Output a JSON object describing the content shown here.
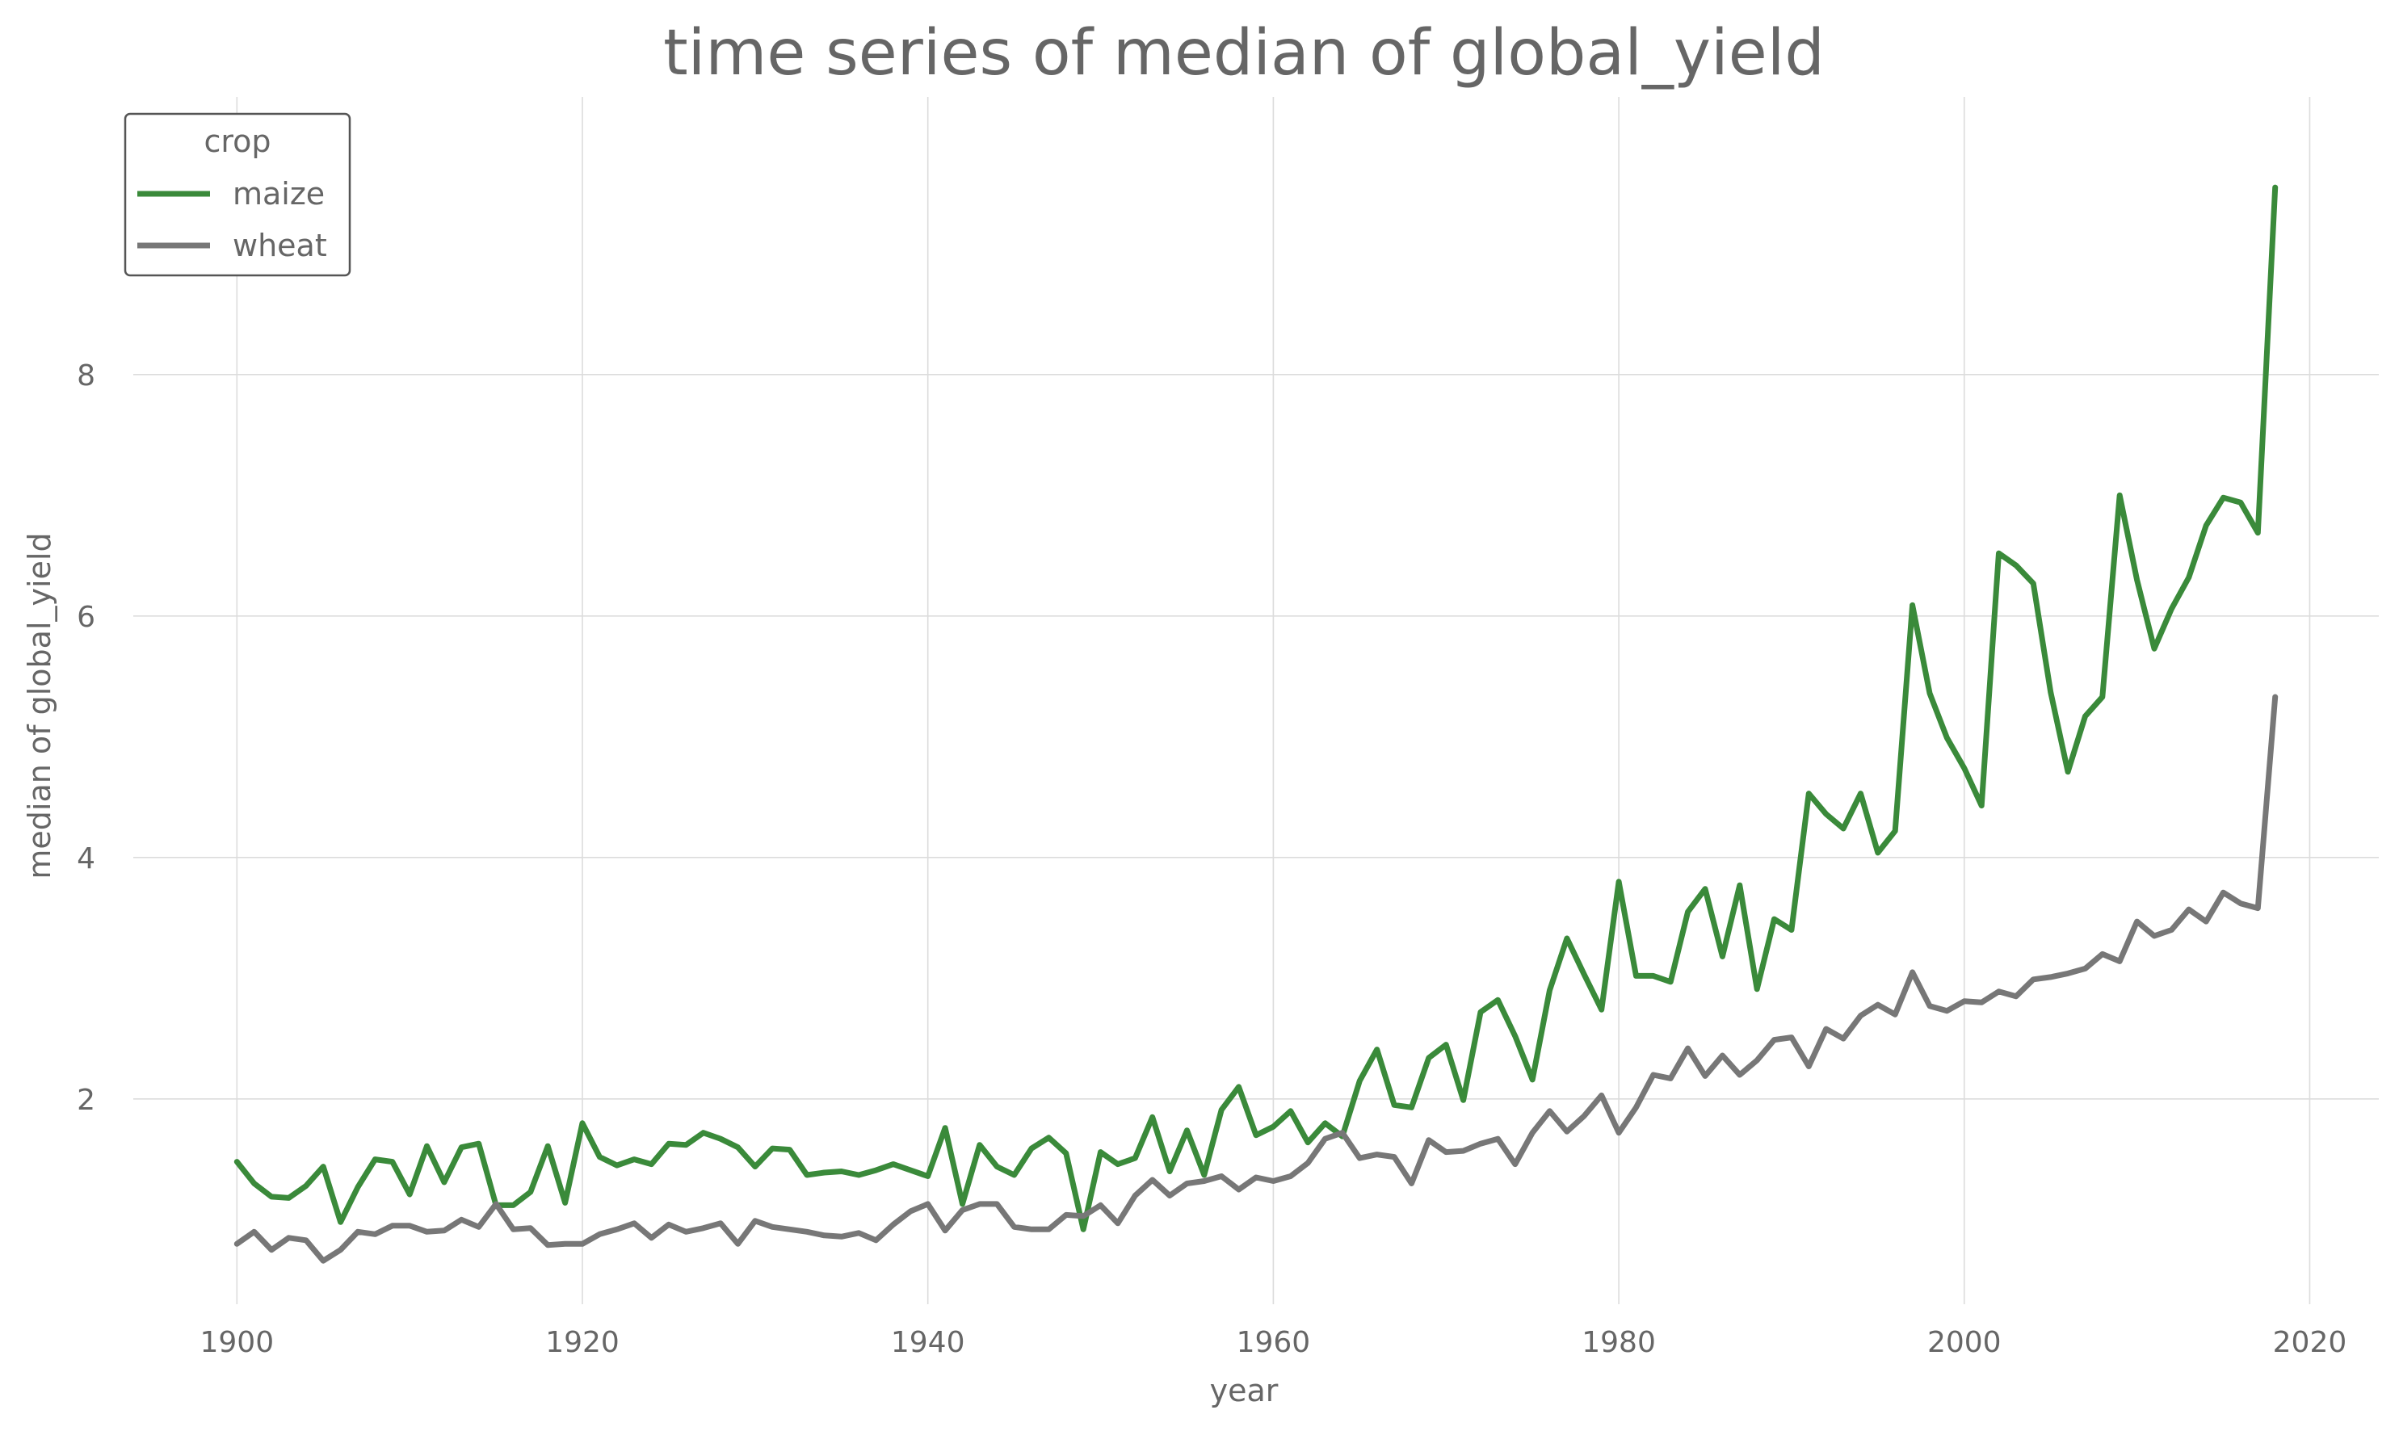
{
  "chart_data": {
    "type": "line",
    "title": "time series of median of global_yield",
    "xlabel": "year",
    "ylabel": "median of global_yield",
    "xlim": [
      1894,
      2024
    ],
    "ylim": [
      0.3,
      10.3
    ],
    "x_ticks": [
      1900,
      1920,
      1940,
      1960,
      1980,
      2000,
      2020
    ],
    "y_ticks": [
      2,
      4,
      6,
      8
    ],
    "grid": true,
    "legend": {
      "title": "crop",
      "placement": "top-left"
    },
    "x": [
      1900,
      1901,
      1902,
      1903,
      1904,
      1905,
      1906,
      1907,
      1908,
      1909,
      1910,
      1911,
      1912,
      1913,
      1914,
      1915,
      1916,
      1917,
      1918,
      1919,
      1920,
      1921,
      1922,
      1923,
      1924,
      1925,
      1926,
      1927,
      1928,
      1929,
      1930,
      1931,
      1932,
      1933,
      1934,
      1935,
      1936,
      1937,
      1938,
      1939,
      1940,
      1941,
      1942,
      1943,
      1944,
      1945,
      1946,
      1947,
      1948,
      1949,
      1950,
      1951,
      1952,
      1953,
      1954,
      1955,
      1956,
      1957,
      1958,
      1959,
      1960,
      1961,
      1962,
      1963,
      1964,
      1965,
      1966,
      1967,
      1968,
      1969,
      1970,
      1971,
      1972,
      1973,
      1974,
      1975,
      1976,
      1977,
      1978,
      1979,
      1980,
      1981,
      1982,
      1983,
      1984,
      1985,
      1986,
      1987,
      1988,
      1989,
      1990,
      1991,
      1992,
      1993,
      1994,
      1995,
      1996,
      1997,
      1998,
      1999,
      2000,
      2001,
      2002,
      2003,
      2004,
      2005,
      2006,
      2007,
      2008,
      2009,
      2010,
      2011,
      2012,
      2013,
      2014,
      2015,
      2016,
      2017,
      2018
    ],
    "series": [
      {
        "name": "maize",
        "color": "#3a8a3a",
        "values": [
          1.48,
          1.3,
          1.19,
          1.18,
          1.28,
          1.44,
          0.98,
          1.27,
          1.5,
          1.48,
          1.21,
          1.61,
          1.31,
          1.6,
          1.63,
          1.12,
          1.12,
          1.23,
          1.61,
          1.14,
          1.8,
          1.52,
          1.45,
          1.5,
          1.46,
          1.63,
          1.62,
          1.72,
          1.67,
          1.6,
          1.44,
          1.59,
          1.58,
          1.37,
          1.39,
          1.4,
          1.37,
          1.41,
          1.46,
          1.41,
          1.36,
          1.76,
          1.13,
          1.62,
          1.44,
          1.37,
          1.59,
          1.68,
          1.55,
          0.92,
          1.56,
          1.46,
          1.51,
          1.85,
          1.4,
          1.74,
          1.37,
          1.91,
          2.1,
          1.7,
          1.77,
          1.9,
          1.64,
          1.8,
          1.69,
          2.15,
          2.41,
          1.95,
          1.93,
          2.34,
          2.45,
          1.99,
          2.72,
          2.82,
          2.52,
          2.16,
          2.9,
          3.33,
          3.03,
          2.74,
          3.8,
          3.02,
          3.02,
          2.97,
          3.55,
          3.74,
          3.18,
          3.77,
          2.91,
          3.49,
          3.4,
          4.53,
          4.36,
          4.24,
          4.53,
          4.04,
          4.22,
          6.09,
          5.36,
          4.99,
          4.74,
          4.43,
          6.52,
          6.42,
          6.27,
          5.37,
          4.71,
          5.17,
          5.33,
          7.0,
          6.3,
          5.73,
          6.06,
          6.32,
          6.75,
          6.98,
          6.94,
          6.69,
          9.55
        ]
      },
      {
        "name": "wheat",
        "color": "#777777",
        "values": [
          0.8,
          0.9,
          0.75,
          0.85,
          0.83,
          0.66,
          0.75,
          0.9,
          0.88,
          0.95,
          0.95,
          0.9,
          0.91,
          1.0,
          0.94,
          1.13,
          0.92,
          0.93,
          0.79,
          0.8,
          0.8,
          0.88,
          0.92,
          0.97,
          0.85,
          0.96,
          0.9,
          0.93,
          0.97,
          0.8,
          0.99,
          0.94,
          0.92,
          0.9,
          0.87,
          0.86,
          0.89,
          0.83,
          0.96,
          1.07,
          1.13,
          0.91,
          1.08,
          1.13,
          1.13,
          0.94,
          0.92,
          0.92,
          1.04,
          1.03,
          1.12,
          0.97,
          1.2,
          1.33,
          1.2,
          1.3,
          1.32,
          1.36,
          1.25,
          1.35,
          1.32,
          1.36,
          1.47,
          1.67,
          1.72,
          1.51,
          1.54,
          1.52,
          1.3,
          1.66,
          1.56,
          1.57,
          1.63,
          1.67,
          1.46,
          1.72,
          1.9,
          1.73,
          1.86,
          2.03,
          1.72,
          1.93,
          2.2,
          2.17,
          2.42,
          2.19,
          2.36,
          2.2,
          2.32,
          2.49,
          2.51,
          2.27,
          2.58,
          2.5,
          2.69,
          2.78,
          2.7,
          3.05,
          2.77,
          2.73,
          2.81,
          2.8,
          2.89,
          2.85,
          2.99,
          3.01,
          3.04,
          3.08,
          3.2,
          3.14,
          3.47,
          3.35,
          3.4,
          3.57,
          3.47,
          3.71,
          3.62,
          3.58,
          5.33
        ]
      }
    ]
  }
}
